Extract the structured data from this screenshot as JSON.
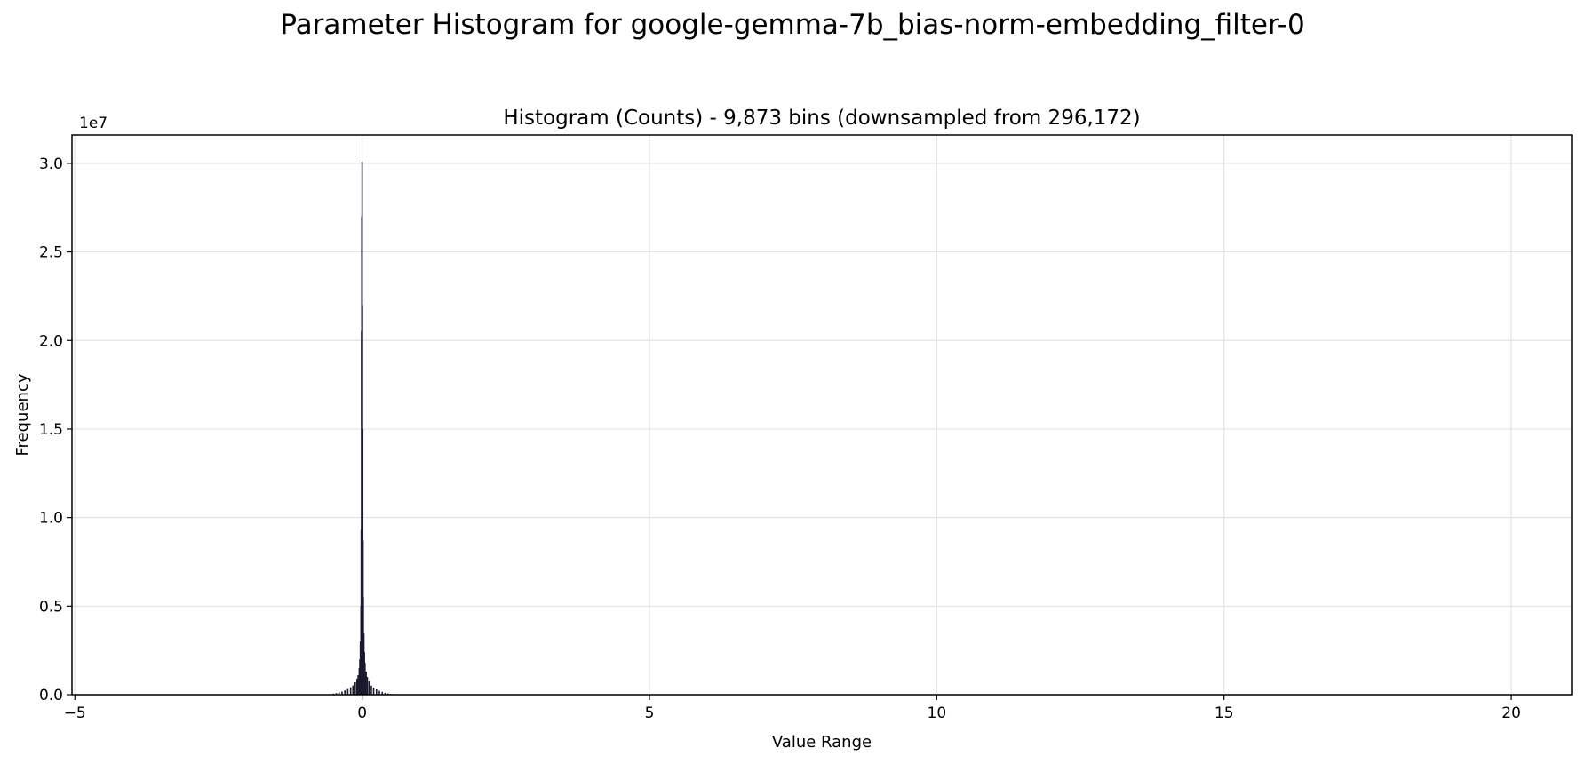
{
  "figure": {
    "suptitle": "Parameter Histogram for google-gemma-7b_bias-norm-embedding_filter-0"
  },
  "chart_data": {
    "type": "bar",
    "title": "Histogram (Counts) - 9,873 bins (downsampled from 296,172)",
    "xlabel": "Value Range",
    "ylabel": "Frequency",
    "y_offset_text": "1e7",
    "xlim": [
      -5.05,
      21.05
    ],
    "ylim": [
      0,
      31600000
    ],
    "xticks": [
      -5,
      0,
      5,
      10,
      15,
      20
    ],
    "xtick_labels": [
      "−5",
      "0",
      "5",
      "10",
      "15",
      "20"
    ],
    "yticks": [
      0,
      5000000,
      10000000,
      15000000,
      20000000,
      25000000,
      30000000
    ],
    "ytick_labels": [
      "0.0",
      "0.5",
      "1.0",
      "1.5",
      "2.0",
      "2.5",
      "3.0"
    ],
    "grid": true,
    "bar_color": "#1a1a2e",
    "bars": [
      {
        "x": -0.5,
        "y": 60000
      },
      {
        "x": -0.45,
        "y": 90000
      },
      {
        "x": -0.4,
        "y": 130000
      },
      {
        "x": -0.35,
        "y": 180000
      },
      {
        "x": -0.3,
        "y": 240000
      },
      {
        "x": -0.25,
        "y": 320000
      },
      {
        "x": -0.2,
        "y": 420000
      },
      {
        "x": -0.16,
        "y": 520000
      },
      {
        "x": -0.12,
        "y": 700000
      },
      {
        "x": -0.09,
        "y": 900000
      },
      {
        "x": -0.07,
        "y": 1100000
      },
      {
        "x": -0.05,
        "y": 1500000
      },
      {
        "x": -0.04,
        "y": 2000000
      },
      {
        "x": -0.03,
        "y": 3000000
      },
      {
        "x": -0.02,
        "y": 5000000
      },
      {
        "x": -0.015,
        "y": 9300000
      },
      {
        "x": -0.01,
        "y": 20500000
      },
      {
        "x": -0.005,
        "y": 27000000
      },
      {
        "x": 0.0,
        "y": 30100000
      },
      {
        "x": 0.005,
        "y": 22000000
      },
      {
        "x": 0.01,
        "y": 15000000
      },
      {
        "x": 0.015,
        "y": 8700000
      },
      {
        "x": 0.02,
        "y": 5500000
      },
      {
        "x": 0.03,
        "y": 3500000
      },
      {
        "x": 0.04,
        "y": 2400000
      },
      {
        "x": 0.05,
        "y": 1800000
      },
      {
        "x": 0.07,
        "y": 1300000
      },
      {
        "x": 0.09,
        "y": 1000000
      },
      {
        "x": 0.12,
        "y": 750000
      },
      {
        "x": 0.16,
        "y": 520000
      },
      {
        "x": 0.2,
        "y": 400000
      },
      {
        "x": 0.25,
        "y": 300000
      },
      {
        "x": 0.3,
        "y": 220000
      },
      {
        "x": 0.35,
        "y": 160000
      },
      {
        "x": 0.4,
        "y": 110000
      },
      {
        "x": 0.45,
        "y": 70000
      },
      {
        "x": 0.5,
        "y": 40000
      }
    ]
  }
}
